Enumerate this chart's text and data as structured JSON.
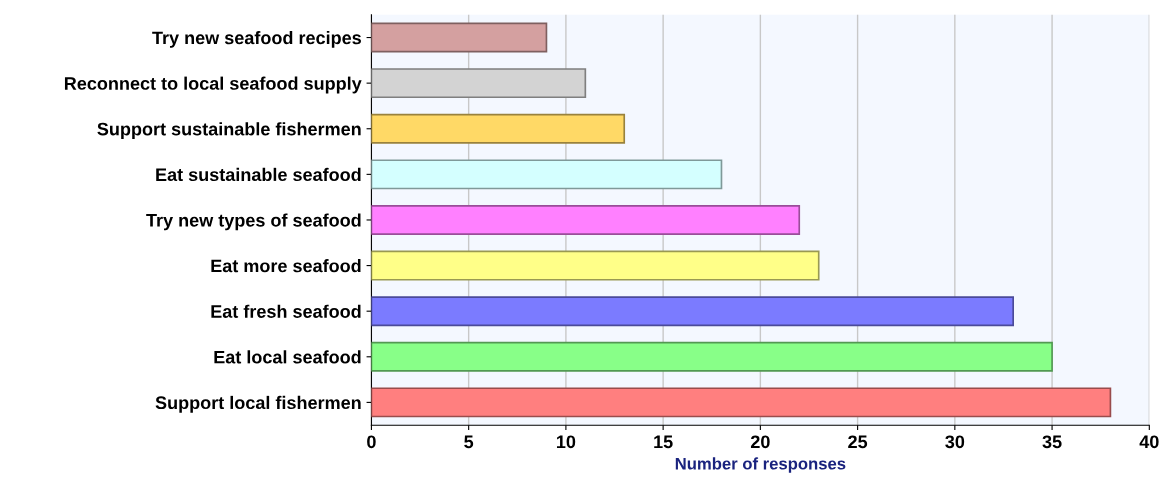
{
  "chart_data": {
    "type": "bar",
    "orientation": "horizontal",
    "xlabel": "Number of responses",
    "categories": [
      "Try new seafood recipes",
      "Reconnect to local seafood supply",
      "Support sustainable fishermen",
      "Eat sustainable seafood",
      "Try new types of seafood",
      "Eat more seafood",
      "Eat fresh seafood",
      "Eat local seafood",
      "Support local fishermen"
    ],
    "values": [
      9,
      11,
      13,
      18,
      22,
      23,
      33,
      35,
      38
    ],
    "colors": [
      "#d4a0a0",
      "#d3d3d3",
      "#ffd966",
      "#d4ffff",
      "#ff80ff",
      "#ffff88",
      "#7b7bff",
      "#88ff88",
      "#ff7f7f"
    ],
    "xlim": [
      0,
      40
    ],
    "xticks": [
      0,
      5,
      10,
      15,
      20,
      25,
      30,
      35,
      40
    ],
    "grid": "x"
  }
}
